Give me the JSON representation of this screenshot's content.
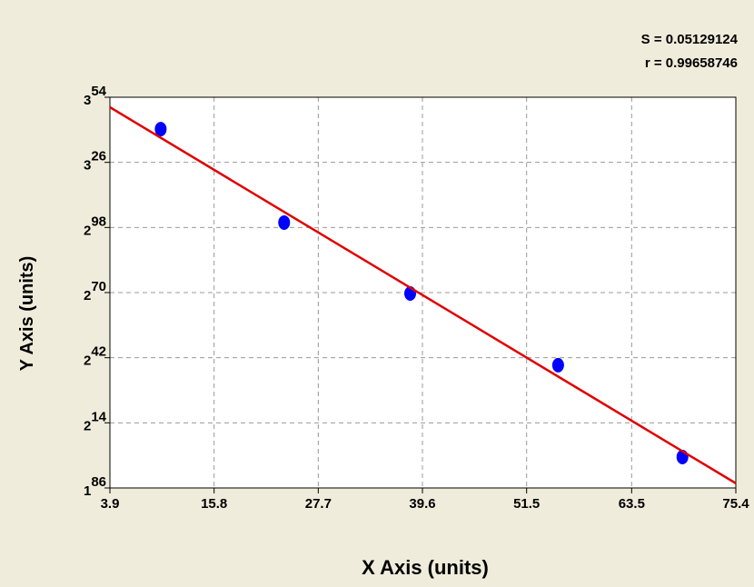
{
  "chart_data": {
    "type": "scatter",
    "annotations": [
      "S = 0.05129124",
      "r = 0.99658746"
    ],
    "x_label": "X Axis (units)",
    "y_label": "Y Axis (units)",
    "xlim": [
      3.9,
      75.4
    ],
    "xticks": [
      3.9,
      15.8,
      27.7,
      39.6,
      51.5,
      63.5,
      75.4
    ],
    "ylim": [
      186,
      354
    ],
    "yticks": [
      186,
      214,
      242,
      270,
      298,
      326,
      354
    ],
    "grid": true,
    "series": [
      {
        "kind": "points",
        "color": "#0000ff",
        "x": [
          9.7,
          23.8,
          38.2,
          55.1,
          69.3
        ],
        "values": [
          340.3,
          300.1,
          269.6,
          238.8,
          199.3
        ]
      },
      {
        "kind": "fit",
        "color": "#e00000",
        "x": [
          3.9,
          75.4
        ],
        "values": [
          349.7,
          188.0
        ]
      }
    ]
  }
}
